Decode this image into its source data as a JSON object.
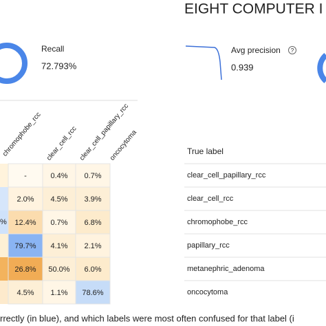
{
  "header": {
    "title": "EIGHT COMPUTER I"
  },
  "metrics": {
    "recall": {
      "label": "Recall",
      "value": "72.793%"
    },
    "avg_precision": {
      "label": "Avg precision",
      "value": "0.939"
    }
  },
  "matrix": {
    "columns": [
      "chromophobe_rcc",
      "clear_cell_rcc",
      "clear_cell_papillary_rcc",
      "oncocytoma"
    ],
    "rows": [
      [
        "-",
        "0.4%",
        "0.7%"
      ],
      [
        "2.0%",
        "4.5%",
        "3.9%"
      ],
      [
        "12.4%",
        "0.7%",
        "6.8%"
      ],
      [
        "79.7%",
        "4.1%",
        "2.1%"
      ],
      [
        "26.8%",
        "50.0%",
        "6.0%"
      ],
      [
        "4.5%",
        "1.1%",
        "78.6%"
      ]
    ],
    "partial_cell": "%"
  },
  "true_labels": {
    "header": "True label",
    "rows": [
      "clear_cell_papillary_rcc",
      "clear_cell_rcc",
      "chromophobe_rcc",
      "papillary_rcc",
      "metanephric_adenoma",
      "oncocytoma"
    ]
  },
  "caption": "rrectly (in blue), and which labels were most often confused for that label (i"
}
